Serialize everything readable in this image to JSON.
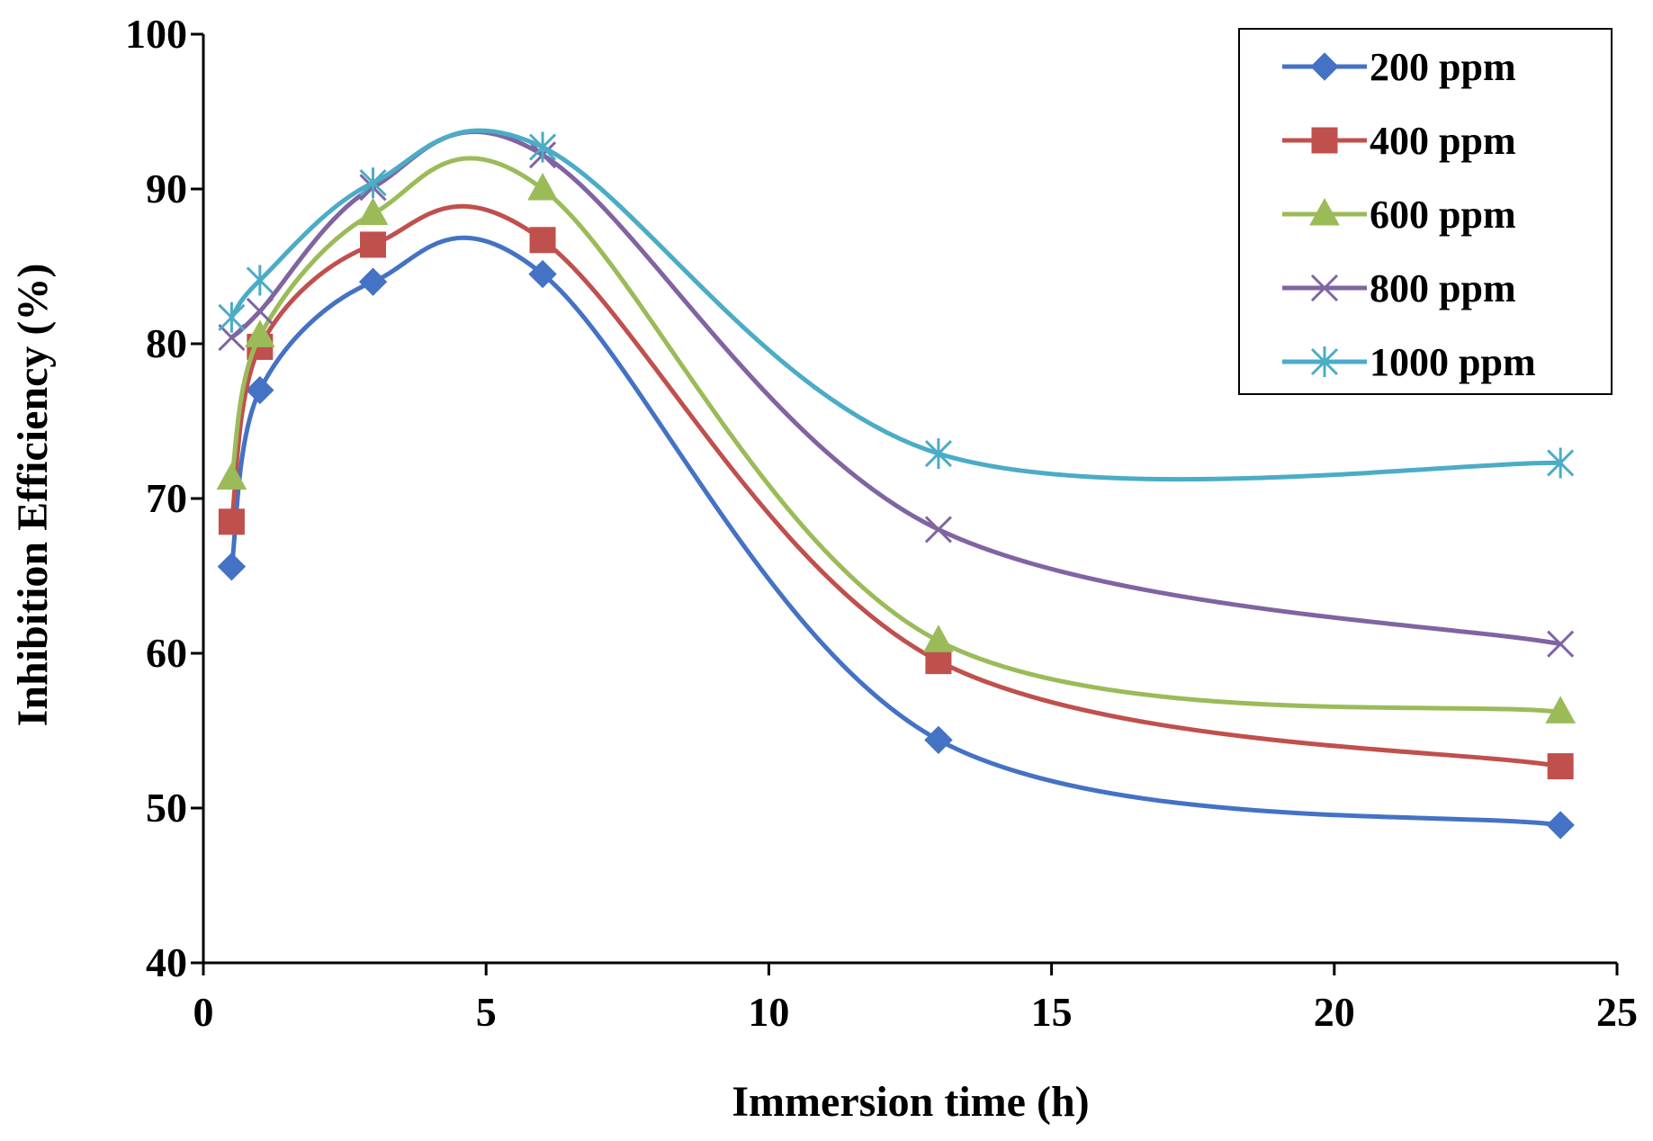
{
  "chart_data": {
    "type": "line",
    "title": "",
    "xlabel": "Immersion  time (h)",
    "ylabel": "Inhibition  Efficiency (%)",
    "xlim": [
      0,
      25
    ],
    "ylim": [
      40,
      100
    ],
    "xticks": [
      0,
      5,
      10,
      15,
      20,
      25
    ],
    "yticks": [
      40,
      50,
      60,
      70,
      80,
      90,
      100
    ],
    "grid": false,
    "legend_position": "top-right",
    "x": [
      0.5,
      1,
      3,
      6,
      13,
      24
    ],
    "series": [
      {
        "name": "200 ppm",
        "color": "#4472C4",
        "marker": "diamond",
        "values": [
          65.6,
          77.0,
          84.0,
          84.5,
          54.4,
          48.9
        ]
      },
      {
        "name": "400 ppm",
        "color": "#C0504D",
        "marker": "square",
        "values": [
          68.5,
          79.8,
          86.4,
          86.7,
          59.5,
          52.7
        ]
      },
      {
        "name": "600 ppm",
        "color": "#9BBB59",
        "marker": "triangle",
        "values": [
          71.3,
          80.5,
          88.4,
          90.0,
          60.8,
          56.2
        ]
      },
      {
        "name": "800 ppm",
        "color": "#8064A2",
        "marker": "x",
        "values": [
          80.4,
          82.1,
          90.1,
          92.2,
          68.0,
          60.6
        ]
      },
      {
        "name": "1000 ppm",
        "color": "#4BACC6",
        "marker": "star",
        "values": [
          81.7,
          84.1,
          90.4,
          92.7,
          72.9,
          72.3
        ]
      }
    ]
  }
}
